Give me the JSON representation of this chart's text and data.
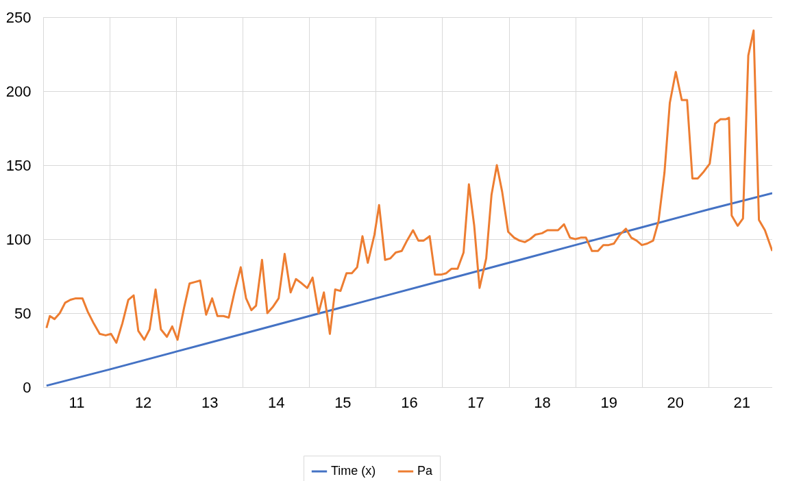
{
  "chart_data": {
    "type": "line",
    "xlim": [
      10.5,
      21.46
    ],
    "ylim": [
      0,
      250
    ],
    "xticks": [
      {
        "value": 10.5,
        "label": null
      },
      11,
      {
        "value": 11.5,
        "label": null
      },
      12,
      {
        "value": 12.5,
        "label": null
      },
      13,
      {
        "value": 13.5,
        "label": null
      },
      14,
      {
        "value": 14.5,
        "label": null
      },
      15,
      {
        "value": 15.5,
        "label": null
      },
      16,
      {
        "value": 16.5,
        "label": null
      },
      17,
      {
        "value": 17.5,
        "label": null
      },
      18,
      {
        "value": 18.5,
        "label": null
      },
      19,
      {
        "value": 19.5,
        "label": null
      },
      20,
      {
        "value": 20.5,
        "label": null
      },
      21
    ],
    "yticks": [
      0,
      50,
      100,
      150,
      200,
      250
    ],
    "grid": true,
    "legend": "bottom",
    "marker": "none",
    "line_style": "solid",
    "series": [
      {
        "name": "Time (x)",
        "color": "#4472c4",
        "x": [
          10.55,
          11.5,
          12.5,
          13.5,
          14.5,
          15.5,
          16.5,
          17.5,
          18.5,
          19.5,
          20.5,
          21.46
        ],
        "values": [
          1,
          12,
          24,
          36,
          48,
          60,
          72,
          84,
          96,
          108,
          120,
          131
        ]
      },
      {
        "name": "Pa",
        "color": "#ed7d31",
        "x": [
          10.55,
          10.6,
          10.67,
          10.75,
          10.83,
          10.91,
          10.99,
          11.09,
          11.17,
          11.26,
          11.35,
          11.44,
          11.52,
          11.6,
          11.69,
          11.78,
          11.86,
          11.93,
          12.02,
          12.1,
          12.19,
          12.27,
          12.36,
          12.44,
          12.52,
          12.62,
          12.7,
          12.78,
          12.86,
          12.95,
          13.04,
          13.12,
          13.21,
          13.29,
          13.38,
          13.47,
          13.55,
          13.63,
          13.7,
          13.79,
          13.87,
          13.95,
          14.04,
          14.13,
          14.22,
          14.3,
          14.39,
          14.47,
          14.55,
          14.64,
          14.72,
          14.81,
          14.89,
          14.97,
          15.06,
          15.14,
          15.22,
          15.3,
          15.38,
          15.48,
          15.55,
          15.64,
          15.72,
          15.8,
          15.89,
          15.97,
          16.06,
          16.14,
          16.22,
          16.31,
          16.39,
          16.48,
          16.56,
          16.64,
          16.73,
          16.82,
          16.9,
          16.98,
          17.06,
          17.16,
          17.24,
          17.32,
          17.4,
          17.49,
          17.58,
          17.66,
          17.74,
          17.82,
          17.9,
          18.0,
          18.08,
          18.16,
          18.24,
          18.33,
          18.42,
          18.5,
          18.58,
          18.66,
          18.75,
          18.84,
          18.92,
          19.0,
          19.08,
          19.17,
          19.26,
          19.34,
          19.42,
          19.5,
          19.58,
          19.67,
          19.75,
          19.84,
          19.92,
          20.01,
          20.1,
          20.18,
          20.26,
          20.34,
          20.42,
          20.52,
          20.6,
          20.68,
          20.76,
          20.81,
          20.85,
          20.94,
          21.02,
          21.1,
          21.18,
          21.26,
          21.35,
          21.46
        ],
        "values": [
          40,
          48,
          46,
          50,
          57,
          59,
          60,
          60,
          51,
          43,
          36,
          35,
          36,
          30,
          43,
          59,
          62,
          38,
          32,
          39,
          66,
          39,
          34,
          41,
          32,
          54,
          70,
          71,
          72,
          49,
          60,
          48,
          48,
          47,
          65,
          81,
          60,
          52,
          55,
          86,
          50,
          54,
          60,
          90,
          64,
          73,
          70,
          67,
          74,
          50,
          64,
          36,
          66,
          65,
          77,
          77,
          81,
          102,
          84,
          103,
          123,
          86,
          87,
          91,
          92,
          99,
          106,
          99,
          99,
          102,
          76,
          76,
          77,
          80,
          80,
          91,
          137,
          109,
          67,
          87,
          130,
          150,
          132,
          105,
          101,
          99,
          98,
          100,
          103,
          104,
          106,
          106,
          106,
          110,
          101,
          100,
          101,
          101,
          92,
          92,
          96,
          96,
          97,
          103,
          107,
          101,
          99,
          96,
          97,
          99,
          112,
          145,
          192,
          213,
          194,
          194,
          141,
          141,
          145,
          151,
          178,
          181,
          181,
          182,
          116,
          109,
          114,
          224,
          241,
          113,
          106,
          92
        ]
      }
    ]
  }
}
